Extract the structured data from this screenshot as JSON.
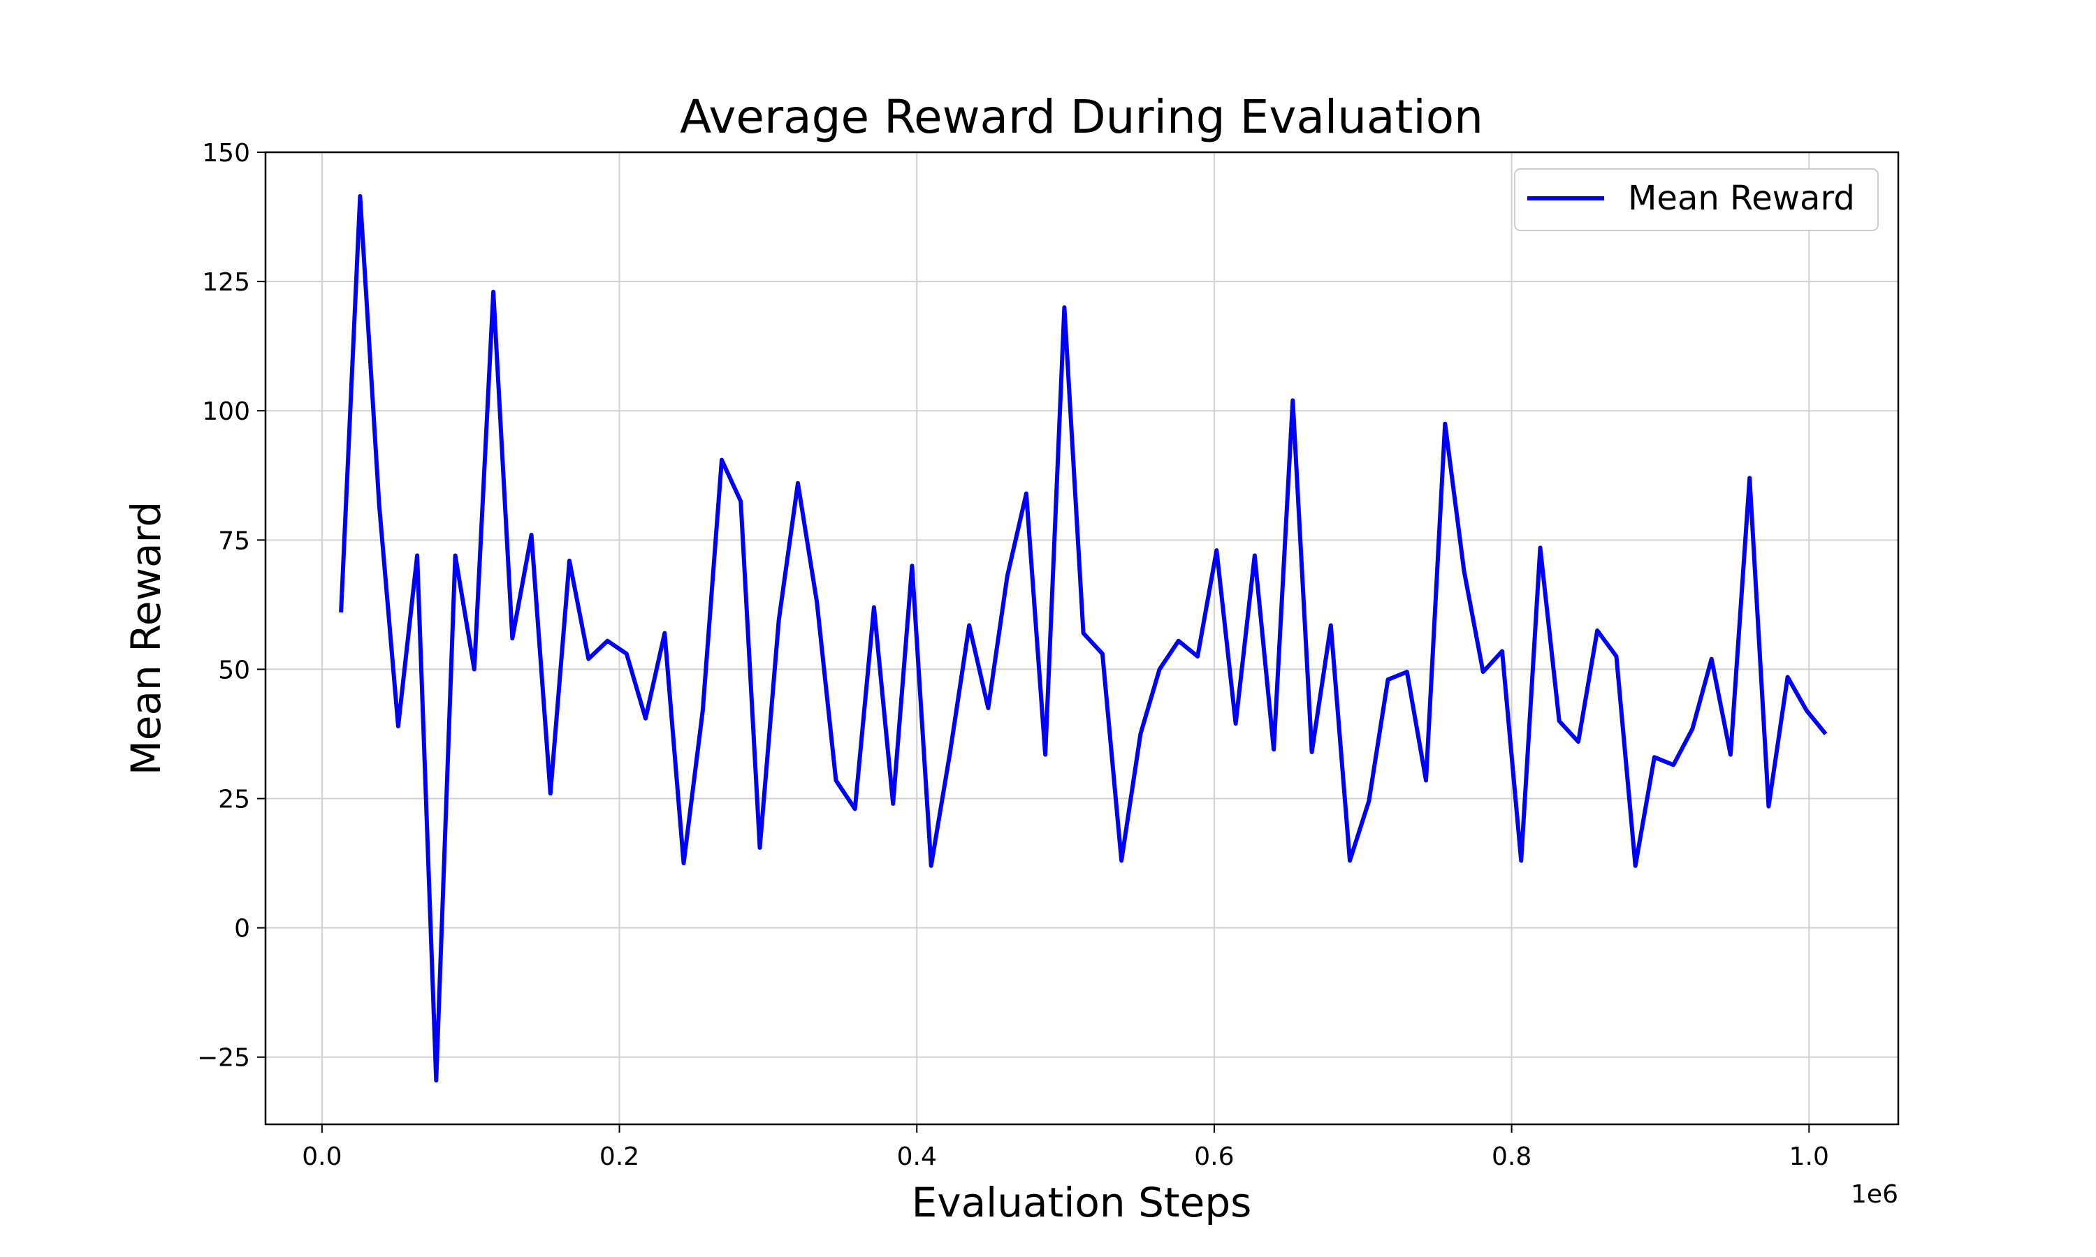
{
  "chart_data": {
    "type": "line",
    "title": "Average Reward During Evaluation",
    "xlabel": "Evaluation Steps",
    "ylabel": "Mean Reward",
    "x_offset_label": "1e6",
    "x_tick_labels": [
      "0.0",
      "0.2",
      "0.4",
      "0.6",
      "0.8",
      "1.0"
    ],
    "x_ticks": [
      0,
      0.2,
      0.4,
      0.6,
      0.8,
      1.0
    ],
    "y_tick_labels": [
      "−25",
      "0",
      "25",
      "50",
      "75",
      "100",
      "125",
      "150"
    ],
    "y_ticks": [
      -25,
      0,
      25,
      50,
      75,
      100,
      125,
      150
    ],
    "xlim": [
      -0.038,
      1.06
    ],
    "ylim": [
      -38,
      150
    ],
    "grid": true,
    "legend": {
      "placement": "upper-right",
      "entries": [
        "Mean Reward"
      ]
    },
    "series": [
      {
        "name": "Mean Reward",
        "color": "#0000ff",
        "x_scale": 0.0128,
        "x": [
          1,
          2,
          3,
          4,
          5,
          6,
          7,
          8,
          9,
          10,
          11,
          12,
          13,
          14,
          15,
          16,
          17,
          18,
          19,
          20,
          21,
          22,
          23,
          24,
          25,
          26,
          27,
          28,
          29,
          30,
          31,
          32,
          33,
          34,
          35,
          36,
          37,
          38,
          39,
          40,
          41,
          42,
          43,
          44,
          45,
          46,
          47,
          48,
          49,
          50,
          51,
          52,
          53,
          54,
          55,
          56,
          57,
          58,
          59,
          60,
          61,
          62,
          63,
          64,
          65,
          66,
          67,
          68,
          69,
          70,
          71,
          72,
          73,
          74,
          75,
          76,
          77,
          78,
          79
        ],
        "y": [
          61,
          141.5,
          82,
          39,
          72,
          -29.5,
          72,
          50,
          123,
          56,
          76,
          26,
          71,
          52,
          55.5,
          53,
          40.5,
          57,
          12.5,
          42,
          90.5,
          82.5,
          15.5,
          59.5,
          86,
          63,
          28.5,
          23,
          62,
          24,
          70,
          12,
          34,
          58.5,
          42.5,
          68,
          84,
          33.5,
          120,
          57,
          53,
          13,
          37.5,
          50,
          55.5,
          52.5,
          73,
          39.5,
          72,
          34.5,
          102,
          34,
          58.5,
          13,
          24.5,
          48,
          49.5,
          28.5,
          97.5,
          69,
          49.5,
          53.5,
          13,
          73.5,
          40,
          36,
          57.5,
          52.5,
          12,
          33,
          31.5,
          38.5,
          52,
          33.5,
          87,
          23.5,
          48.5,
          42,
          37.5
        ]
      }
    ]
  }
}
